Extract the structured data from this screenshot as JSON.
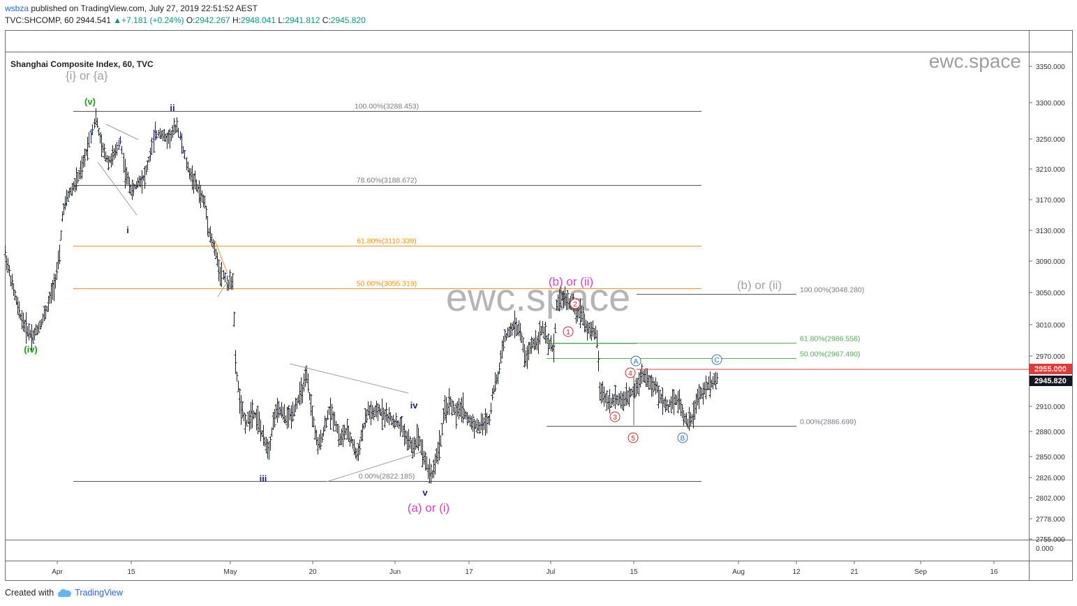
{
  "header": {
    "author": "wsbza",
    "published_text": " published on TradingView.com, July 27, 2019 22:51:52 AEST",
    "symbol": "TVC:SHCOMP, 60",
    "last": "2944.541",
    "change": "+7.181 (+0.24%)",
    "open_label": "O:",
    "open": "2942.267",
    "high_label": "H:",
    "high": "2948.041",
    "low_label": "L:",
    "low": "2941.812",
    "close_label": "C:",
    "close": "2945.820"
  },
  "footer": {
    "created_with": "Created with",
    "brand": "TradingView"
  },
  "colors": {
    "bars": "#131a5a",
    "fib_gray": "#787b86",
    "fib_orange": "#f7931a",
    "fib_green": "#4caf50",
    "wave_green": "#1b9e1b",
    "wave_blue": "#1a237e",
    "wave_magenta": "#e040c0",
    "wave_gray": "#a0a0a0",
    "circle_red": "#c62828",
    "circle_blue": "#2f6fbf",
    "price_red": "#e53935",
    "price_dark": "#131722"
  },
  "chart_data": {
    "type": "bar",
    "title": "Shanghai Composite Index, 60, TVC",
    "watermark": "ewc.space",
    "x_ticks": [
      "Apr",
      "15",
      "May",
      "20",
      "Jun",
      "17",
      "Jul",
      "15",
      "Aug",
      "12",
      "21",
      "Sep",
      "16"
    ],
    "y_ticks": [
      "3350.000",
      "3300.000",
      "3250.000",
      "3210.000",
      "3170.000",
      "3130.000",
      "3090.000",
      "3050.000",
      "3010.000",
      "2970.000",
      "2910.000",
      "2880.000",
      "2850.000",
      "2826.000",
      "2802.000",
      "2778.000",
      "2755.000"
    ],
    "y_range": [
      2755,
      3370
    ],
    "indicator_pane_tick": "0.000",
    "price_labels": [
      {
        "value": 2955.0,
        "text": "2955.000",
        "color": "#e53935"
      },
      {
        "value": 2945.82,
        "text": "2945.820",
        "color": "#131722"
      }
    ],
    "fib_levels": [
      {
        "text": "100.00%(3288.453)",
        "value": 3288.453,
        "color": "gray"
      },
      {
        "text": "78.60%(3188.672)",
        "value": 3188.672,
        "color": "gray"
      },
      {
        "text": "61.80%(3110.339)",
        "value": 3110.339,
        "color": "orange"
      },
      {
        "text": "50.00%(3055.319)",
        "value": 3055.319,
        "color": "orange"
      },
      {
        "text": "0.00%(2822.185)",
        "value": 2822.185,
        "color": "gray"
      },
      {
        "text": "100.00%(3048.280)",
        "value": 3048.28,
        "color": "gray"
      },
      {
        "text": "61.80%(2986.556)",
        "value": 2986.556,
        "color": "green"
      },
      {
        "text": "50.00%(2967.490)",
        "value": 2967.49,
        "color": "green"
      },
      {
        "text": "0.00%(2886.699)",
        "value": 2886.699,
        "color": "gray"
      }
    ],
    "wave_labels": [
      "{i} or {a}",
      "(v)",
      "ii",
      "i",
      "(iv)",
      "iii",
      "iv",
      "v",
      "(a) or (i)",
      "(b) or (ii)",
      "(b) or (ii)"
    ],
    "circle_labels": [
      "1",
      "2",
      "3",
      "4",
      "5",
      "A",
      "B",
      "C"
    ],
    "series": [
      {
        "name": "",
        "points": [
          [
            0,
            3100
          ],
          [
            10,
            3060
          ],
          [
            20,
            3025
          ],
          [
            30,
            3005
          ],
          [
            40,
            2995
          ],
          [
            50,
            3010
          ],
          [
            60,
            3030
          ],
          [
            70,
            3060
          ],
          [
            78,
            3095
          ],
          [
            82,
            3150
          ],
          [
            90,
            3175
          ],
          [
            100,
            3190
          ],
          [
            110,
            3210
          ],
          [
            118,
            3240
          ],
          [
            125,
            3265
          ],
          [
            130,
            3280
          ],
          [
            138,
            3240
          ],
          [
            148,
            3220
          ],
          [
            158,
            3230
          ],
          [
            165,
            3250
          ],
          [
            172,
            3205
          ],
          [
            182,
            3180
          ],
          [
            192,
            3195
          ],
          [
            200,
            3200
          ],
          [
            208,
            3230
          ],
          [
            215,
            3255
          ],
          [
            222,
            3260
          ],
          [
            230,
            3250
          ],
          [
            238,
            3255
          ],
          [
            246,
            3270
          ],
          [
            255,
            3235
          ],
          [
            262,
            3210
          ],
          [
            270,
            3195
          ],
          [
            278,
            3180
          ],
          [
            286,
            3165
          ],
          [
            292,
            3130
          ],
          [
            300,
            3105
          ],
          [
            308,
            3075
          ],
          [
            315,
            3070
          ],
          [
            320,
            3060
          ],
          [
            326,
            3068
          ],
          [
            330,
            2960
          ],
          [
            338,
            2905
          ],
          [
            346,
            2890
          ],
          [
            354,
            2905
          ],
          [
            362,
            2895
          ],
          [
            370,
            2870
          ],
          [
            378,
            2860
          ],
          [
            386,
            2900
          ],
          [
            394,
            2905
          ],
          [
            402,
            2895
          ],
          [
            410,
            2900
          ],
          [
            418,
            2915
          ],
          [
            426,
            2930
          ],
          [
            432,
            2945
          ],
          [
            440,
            2900
          ],
          [
            448,
            2860
          ],
          [
            456,
            2880
          ],
          [
            464,
            2905
          ],
          [
            472,
            2895
          ],
          [
            480,
            2870
          ],
          [
            488,
            2880
          ],
          [
            496,
            2870
          ],
          [
            504,
            2850
          ],
          [
            512,
            2880
          ],
          [
            520,
            2905
          ],
          [
            528,
            2900
          ],
          [
            536,
            2905
          ],
          [
            544,
            2900
          ],
          [
            552,
            2895
          ],
          [
            560,
            2890
          ],
          [
            568,
            2885
          ],
          [
            576,
            2870
          ],
          [
            584,
            2860
          ],
          [
            592,
            2875
          ],
          [
            600,
            2850
          ],
          [
            606,
            2835
          ],
          [
            612,
            2830
          ],
          [
            618,
            2850
          ],
          [
            624,
            2870
          ],
          [
            630,
            2905
          ],
          [
            638,
            2915
          ],
          [
            646,
            2900
          ],
          [
            654,
            2910
          ],
          [
            662,
            2895
          ],
          [
            670,
            2890
          ],
          [
            678,
            2885
          ],
          [
            686,
            2890
          ],
          [
            694,
            2895
          ],
          [
            698,
            2925
          ],
          [
            706,
            2945
          ],
          [
            714,
            2990
          ],
          [
            722,
            3000
          ],
          [
            730,
            3010
          ],
          [
            738,
            3000
          ],
          [
            746,
            2965
          ],
          [
            754,
            2985
          ],
          [
            762,
            2990
          ],
          [
            770,
            3005
          ],
          [
            778,
            2985
          ],
          [
            786,
            2980
          ],
          [
            790,
            3035
          ],
          [
            798,
            3045
          ],
          [
            806,
            3040
          ],
          [
            812,
            3035
          ],
          [
            818,
            3030
          ],
          [
            826,
            3025
          ],
          [
            834,
            3005
          ],
          [
            842,
            3000
          ],
          [
            848,
            2995
          ],
          [
            852,
            2930
          ],
          [
            860,
            2920
          ],
          [
            868,
            2915
          ],
          [
            876,
            2920
          ],
          [
            884,
            2915
          ],
          [
            892,
            2920
          ],
          [
            900,
            2930
          ],
          [
            906,
            2935
          ],
          [
            912,
            2950
          ],
          [
            918,
            2945
          ],
          [
            926,
            2935
          ],
          [
            934,
            2930
          ],
          [
            942,
            2915
          ],
          [
            950,
            2910
          ],
          [
            958,
            2920
          ],
          [
            966,
            2915
          ],
          [
            974,
            2895
          ],
          [
            980,
            2890
          ],
          [
            986,
            2900
          ],
          [
            992,
            2920
          ],
          [
            998,
            2925
          ],
          [
            1006,
            2935
          ],
          [
            1014,
            2940
          ],
          [
            1022,
            2945
          ]
        ]
      }
    ]
  }
}
